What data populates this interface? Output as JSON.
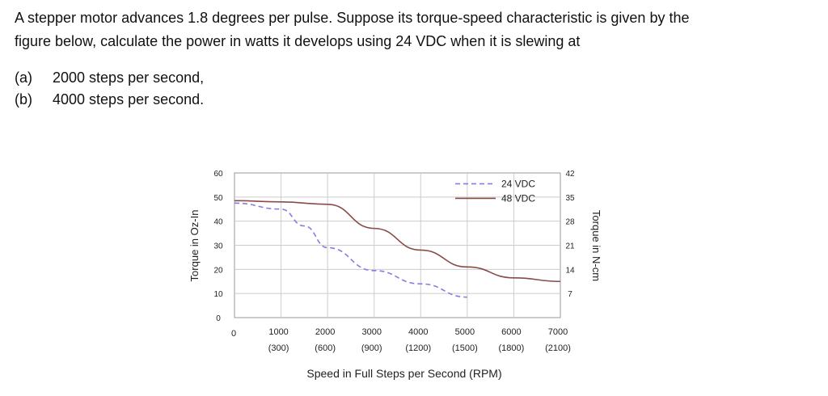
{
  "problem": {
    "line1": "A stepper motor advances 1.8 degrees per pulse. Suppose its torque-speed characteristic is given by the",
    "line2": "figure below, calculate the power in watts it develops using 24 VDC when it is slewing at",
    "parts": [
      {
        "label": "(a)",
        "text": "2000 steps per second,"
      },
      {
        "label": "(b)",
        "text": "4000 steps per second."
      }
    ]
  },
  "chart_data": {
    "type": "line",
    "title": "",
    "xlabel": "Speed in Full Steps per Second (RPM)",
    "ylabel": "Torque in Oz-In",
    "ylabel_right": "Torque in N-cm",
    "xlim": [
      0,
      7000
    ],
    "ylim": [
      0,
      60
    ],
    "ylim_right": [
      0,
      42
    ],
    "grid": true,
    "legend": "top-right",
    "x_ticks": [
      "0",
      "1000",
      "2000",
      "3000",
      "4000",
      "5000",
      "6000",
      "7000"
    ],
    "x_ticks_rpm": [
      "",
      "(300)",
      "(600)",
      "(900)",
      "(1200)",
      "(1500)",
      "(1800)",
      "(2100)"
    ],
    "y_ticks": [
      "0",
      "10",
      "20",
      "30",
      "40",
      "50",
      "60"
    ],
    "y_ticks_right": [
      "7",
      "14",
      "21",
      "28",
      "35",
      "42"
    ],
    "series": [
      {
        "name": "24 VDC",
        "style": "dashed",
        "color": "#8a7ae0",
        "x": [
          0,
          1000,
          1500,
          2000,
          3000,
          4000,
          5000
        ],
        "y": [
          47.5,
          45,
          38,
          29,
          19.5,
          14,
          8.5
        ]
      },
      {
        "name": "48 VDC",
        "style": "solid",
        "color": "#8a4a48",
        "x": [
          0,
          1000,
          2000,
          3000,
          4000,
          5000,
          6000,
          7000
        ],
        "y": [
          48.5,
          48,
          47,
          37,
          28,
          21,
          16.5,
          15
        ]
      }
    ]
  }
}
